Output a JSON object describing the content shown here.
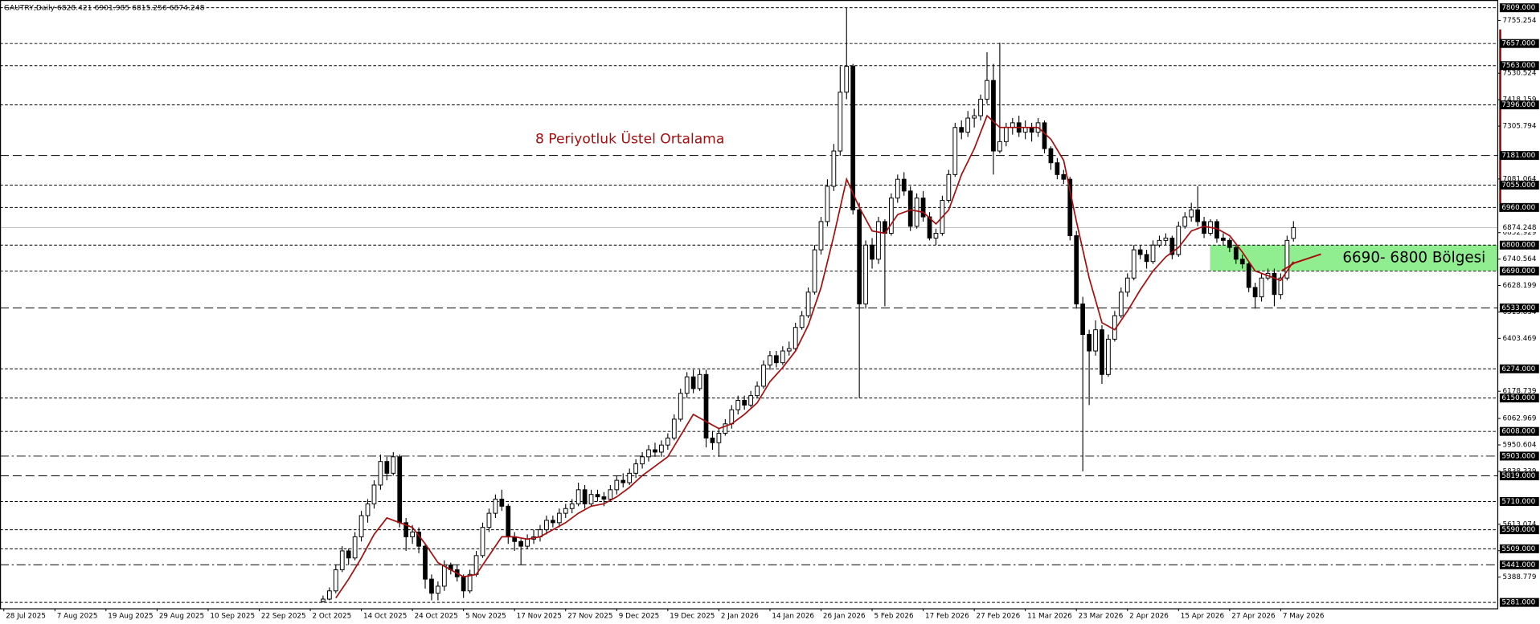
{
  "chart_data": {
    "type": "candlestick",
    "title": "GAUTRY,Daily  6828.421 6901.985 6815.256 6874.248",
    "xlim": [
      -0.6,
      234
    ],
    "ylim": [
      5256,
      7842
    ],
    "xticks": [
      {
        "value": 0,
        "label": "28 Jul 2025"
      },
      {
        "value": 8,
        "label": "7 Aug 2025"
      },
      {
        "value": 16,
        "label": "19 Aug 2025"
      },
      {
        "value": 24,
        "label": "29 Aug 2025"
      },
      {
        "value": 32,
        "label": "10 Sep 2025"
      },
      {
        "value": 40,
        "label": "22 Sep 2025"
      },
      {
        "value": 48,
        "label": "2 Oct 2025"
      },
      {
        "value": 56,
        "label": "14 Oct 2025"
      },
      {
        "value": 64,
        "label": "24 Oct 2025"
      },
      {
        "value": 72,
        "label": "5 Nov 2025"
      },
      {
        "value": 80,
        "label": "17 Nov 2025"
      },
      {
        "value": 88,
        "label": "27 Nov 2025"
      },
      {
        "value": 96,
        "label": "9 Dec 2025"
      },
      {
        "value": 104,
        "label": "19 Dec 2025"
      },
      {
        "value": 112,
        "label": "2 Jan 2026"
      },
      {
        "value": 120,
        "label": "14 Jan 2026"
      },
      {
        "value": 128,
        "label": "26 Jan 2026"
      },
      {
        "value": 136,
        "label": "5 Feb 2026"
      },
      {
        "value": 144,
        "label": "17 Feb 2026"
      },
      {
        "value": 152,
        "label": "27 Feb 2026"
      },
      {
        "value": 160,
        "label": "11 Mar 2026"
      },
      {
        "value": 168,
        "label": "23 Mar 2026"
      },
      {
        "value": 176,
        "label": "2 Apr 2026"
      },
      {
        "value": 184,
        "label": "15 Apr 2026"
      },
      {
        "value": 192,
        "label": "27 Apr 2026"
      },
      {
        "value": 200,
        "label": "7 May 2026"
      }
    ],
    "yticks": [
      7755.254,
      7530.524,
      7418.159,
      7305.794,
      7081.064,
      6852.929,
      6740.564,
      6628.199,
      6515.834,
      6403.469,
      6178.739,
      6062.969,
      5950.604,
      5838.339,
      5613.074,
      5500.809,
      5388.779
    ],
    "levels": [
      {
        "value": 7809,
        "label": "7809.000",
        "style": "dotted"
      },
      {
        "value": 7657,
        "label": "7657.000",
        "style": "dotted"
      },
      {
        "value": 7563,
        "label": "7563.000",
        "style": "dotted"
      },
      {
        "value": 7396,
        "label": "7396.000",
        "style": "dotted"
      },
      {
        "value": 7181,
        "label": "7181.000",
        "style": "dashed"
      },
      {
        "value": 7055,
        "label": "7055.000",
        "style": "dotted"
      },
      {
        "value": 6960,
        "label": "6960.000",
        "style": "dotted"
      },
      {
        "value": 6800,
        "label": "6800.000",
        "style": "dotted"
      },
      {
        "value": 6690,
        "label": "6690.000",
        "style": "dotted"
      },
      {
        "value": 6533,
        "label": "6533.000",
        "style": "dashed"
      },
      {
        "value": 6274,
        "label": "6274.000",
        "style": "dotted"
      },
      {
        "value": 6150,
        "label": "6150.000",
        "style": "dotted"
      },
      {
        "value": 6008,
        "label": "6008.000",
        "style": "dotted"
      },
      {
        "value": 5903,
        "label": "5903.000",
        "style": "dashdot"
      },
      {
        "value": 5819,
        "label": "5819.000",
        "style": "dashed"
      },
      {
        "value": 5710,
        "label": "5710.000",
        "style": "dotted"
      },
      {
        "value": 5590,
        "label": "5590.000",
        "style": "dotted"
      },
      {
        "value": 5509,
        "label": "5509.000",
        "style": "dotted"
      },
      {
        "value": 5441,
        "label": "5441.000",
        "style": "dashdot"
      },
      {
        "value": 5281,
        "label": "5281.000",
        "style": "dotted"
      }
    ],
    "current": {
      "value": 6874.248,
      "label": "6874.248"
    },
    "colors": {
      "up": "#ffffff",
      "down": "#000000",
      "level": "#000000",
      "current": "#c0c0c0"
    },
    "candles": [
      [
        50,
        5285,
        5310,
        5281,
        5295
      ],
      [
        51,
        5295,
        5345,
        5290,
        5330
      ],
      [
        52,
        5330,
        5440,
        5320,
        5420
      ],
      [
        53,
        5420,
        5520,
        5410,
        5500
      ],
      [
        54,
        5500,
        5510,
        5440,
        5470
      ],
      [
        55,
        5470,
        5580,
        5460,
        5560
      ],
      [
        56,
        5560,
        5670,
        5540,
        5650
      ],
      [
        57,
        5650,
        5720,
        5620,
        5700
      ],
      [
        58,
        5700,
        5800,
        5680,
        5780
      ],
      [
        59,
        5780,
        5910,
        5760,
        5880
      ],
      [
        60,
        5880,
        5900,
        5800,
        5830
      ],
      [
        61,
        5830,
        5920,
        5820,
        5900
      ],
      [
        62,
        5900,
        5910,
        5600,
        5620
      ],
      [
        63,
        5620,
        5640,
        5500,
        5560
      ],
      [
        64,
        5560,
        5610,
        5530,
        5580
      ],
      [
        65,
        5580,
        5600,
        5490,
        5520
      ],
      [
        66,
        5520,
        5530,
        5340,
        5380
      ],
      [
        67,
        5380,
        5400,
        5290,
        5320
      ],
      [
        68,
        5320,
        5370,
        5290,
        5350
      ],
      [
        69,
        5350,
        5460,
        5330,
        5440
      ],
      [
        70,
        5440,
        5450,
        5400,
        5420
      ],
      [
        71,
        5420,
        5440,
        5370,
        5390
      ],
      [
        72,
        5390,
        5400,
        5300,
        5330
      ],
      [
        73,
        5330,
        5420,
        5320,
        5400
      ],
      [
        74,
        5400,
        5500,
        5390,
        5480
      ],
      [
        75,
        5480,
        5620,
        5470,
        5600
      ],
      [
        76,
        5600,
        5680,
        5580,
        5660
      ],
      [
        77,
        5660,
        5740,
        5640,
        5720
      ],
      [
        78,
        5720,
        5760,
        5670,
        5690
      ],
      [
        79,
        5690,
        5700,
        5530,
        5560
      ],
      [
        80,
        5560,
        5580,
        5500,
        5540
      ],
      [
        81,
        5540,
        5550,
        5440,
        5520
      ],
      [
        82,
        5520,
        5570,
        5510,
        5550
      ],
      [
        83,
        5550,
        5590,
        5530,
        5560
      ],
      [
        84,
        5560,
        5610,
        5540,
        5590
      ],
      [
        85,
        5590,
        5650,
        5570,
        5630
      ],
      [
        86,
        5630,
        5650,
        5600,
        5620
      ],
      [
        87,
        5620,
        5680,
        5600,
        5660
      ],
      [
        88,
        5660,
        5700,
        5640,
        5680
      ],
      [
        89,
        5680,
        5720,
        5660,
        5700
      ],
      [
        90,
        5700,
        5790,
        5690,
        5760
      ],
      [
        91,
        5760,
        5780,
        5680,
        5700
      ],
      [
        92,
        5700,
        5760,
        5690,
        5740
      ],
      [
        93,
        5740,
        5760,
        5710,
        5730
      ],
      [
        94,
        5730,
        5750,
        5690,
        5720
      ],
      [
        95,
        5720,
        5780,
        5710,
        5760
      ],
      [
        96,
        5760,
        5820,
        5740,
        5800
      ],
      [
        97,
        5800,
        5830,
        5770,
        5790
      ],
      [
        98,
        5790,
        5850,
        5780,
        5830
      ],
      [
        99,
        5830,
        5890,
        5810,
        5870
      ],
      [
        100,
        5870,
        5920,
        5850,
        5900
      ],
      [
        101,
        5900,
        5950,
        5880,
        5930
      ],
      [
        102,
        5930,
        5960,
        5900,
        5920
      ],
      [
        103,
        5920,
        5970,
        5900,
        5950
      ],
      [
        104,
        5950,
        6000,
        5930,
        5980
      ],
      [
        105,
        5980,
        6080,
        5970,
        6060
      ],
      [
        106,
        6060,
        6190,
        6050,
        6170
      ],
      [
        107,
        6170,
        6260,
        6150,
        6240
      ],
      [
        108,
        6240,
        6270,
        6170,
        6190
      ],
      [
        109,
        6190,
        6270,
        6180,
        6250
      ],
      [
        110,
        6250,
        6270,
        5940,
        5980
      ],
      [
        111,
        5980,
        6010,
        5930,
        5960
      ],
      [
        112,
        5960,
        6020,
        5900,
        6000
      ],
      [
        113,
        6000,
        6060,
        5990,
        6040
      ],
      [
        114,
        6040,
        6120,
        6020,
        6100
      ],
      [
        115,
        6100,
        6160,
        6080,
        6140
      ],
      [
        116,
        6140,
        6160,
        6100,
        6120
      ],
      [
        117,
        6120,
        6180,
        6110,
        6160
      ],
      [
        118,
        6160,
        6220,
        6150,
        6200
      ],
      [
        119,
        6200,
        6310,
        6190,
        6290
      ],
      [
        120,
        6290,
        6350,
        6270,
        6330
      ],
      [
        121,
        6330,
        6350,
        6280,
        6300
      ],
      [
        122,
        6300,
        6370,
        6290,
        6350
      ],
      [
        123,
        6350,
        6390,
        6330,
        6360
      ],
      [
        124,
        6360,
        6470,
        6350,
        6450
      ],
      [
        125,
        6450,
        6520,
        6440,
        6500
      ],
      [
        126,
        6500,
        6620,
        6490,
        6600
      ],
      [
        127,
        6600,
        6800,
        6590,
        6780
      ],
      [
        128,
        6780,
        6920,
        6760,
        6900
      ],
      [
        129,
        6900,
        7080,
        6880,
        7050
      ],
      [
        130,
        7050,
        7230,
        7030,
        7200
      ],
      [
        131,
        7200,
        7560,
        7180,
        7450
      ],
      [
        132,
        7450,
        7809,
        7420,
        7560
      ],
      [
        133,
        7560,
        7570,
        6930,
        6950
      ],
      [
        134,
        6950,
        6980,
        6150,
        6550
      ],
      [
        135,
        6550,
        6820,
        6530,
        6800
      ],
      [
        136,
        6800,
        6830,
        6700,
        6740
      ],
      [
        137,
        6740,
        6920,
        6720,
        6900
      ],
      [
        138,
        6900,
        6910,
        6540,
        6850
      ],
      [
        139,
        6850,
        7020,
        6840,
        7000
      ],
      [
        140,
        7000,
        7100,
        6980,
        7080
      ],
      [
        141,
        7080,
        7110,
        7010,
        7030
      ],
      [
        142,
        7030,
        7050,
        6860,
        6880
      ],
      [
        143,
        6880,
        7020,
        6870,
        7000
      ],
      [
        144,
        7000,
        7030,
        6900,
        6920
      ],
      [
        145,
        6920,
        6940,
        6820,
        6830
      ],
      [
        146,
        6830,
        6870,
        6800,
        6850
      ],
      [
        147,
        6850,
        7010,
        6840,
        6990
      ],
      [
        148,
        6990,
        7120,
        6980,
        7100
      ],
      [
        149,
        7100,
        7320,
        7090,
        7300
      ],
      [
        150,
        7300,
        7330,
        7250,
        7280
      ],
      [
        151,
        7280,
        7370,
        7260,
        7340
      ],
      [
        152,
        7340,
        7380,
        7300,
        7350
      ],
      [
        153,
        7350,
        7440,
        7330,
        7420
      ],
      [
        154,
        7420,
        7620,
        7400,
        7500
      ],
      [
        155,
        7500,
        7570,
        7100,
        7200
      ],
      [
        156,
        7200,
        7660,
        7190,
        7240
      ],
      [
        157,
        7240,
        7320,
        7220,
        7300
      ],
      [
        158,
        7300,
        7340,
        7270,
        7320
      ],
      [
        159,
        7320,
        7350,
        7260,
        7280
      ],
      [
        160,
        7280,
        7330,
        7250,
        7300
      ],
      [
        161,
        7300,
        7320,
        7240,
        7280
      ],
      [
        162,
        7280,
        7340,
        7260,
        7320
      ],
      [
        163,
        7320,
        7330,
        7190,
        7210
      ],
      [
        164,
        7210,
        7220,
        7120,
        7150
      ],
      [
        165,
        7150,
        7170,
        7080,
        7100
      ],
      [
        166,
        7100,
        7120,
        7060,
        7080
      ],
      [
        167,
        7080,
        7090,
        6820,
        6840
      ],
      [
        168,
        6840,
        6860,
        6530,
        6550
      ],
      [
        169,
        6550,
        6580,
        5838,
        6420
      ],
      [
        170,
        6420,
        6440,
        6120,
        6350
      ],
      [
        171,
        6350,
        6480,
        6330,
        6440
      ],
      [
        172,
        6440,
        6460,
        6210,
        6250
      ],
      [
        173,
        6250,
        6420,
        6240,
        6400
      ],
      [
        174,
        6400,
        6520,
        6390,
        6500
      ],
      [
        175,
        6500,
        6620,
        6490,
        6600
      ],
      [
        176,
        6600,
        6680,
        6580,
        6660
      ],
      [
        177,
        6660,
        6800,
        6650,
        6780
      ],
      [
        178,
        6780,
        6800,
        6740,
        6760
      ],
      [
        179,
        6760,
        6780,
        6700,
        6730
      ],
      [
        180,
        6730,
        6820,
        6720,
        6800
      ],
      [
        181,
        6800,
        6840,
        6790,
        6820
      ],
      [
        182,
        6820,
        6850,
        6800,
        6830
      ],
      [
        183,
        6830,
        6840,
        6740,
        6760
      ],
      [
        184,
        6760,
        6900,
        6750,
        6880
      ],
      [
        185,
        6880,
        6940,
        6870,
        6920
      ],
      [
        186,
        6920,
        6980,
        6900,
        6950
      ],
      [
        187,
        6950,
        7050,
        6880,
        6900
      ],
      [
        188,
        6900,
        6920,
        6830,
        6850
      ],
      [
        189,
        6850,
        6910,
        6840,
        6900
      ],
      [
        190,
        6900,
        6910,
        6810,
        6830
      ],
      [
        191,
        6830,
        6850,
        6800,
        6820
      ],
      [
        192,
        6820,
        6830,
        6770,
        6790
      ],
      [
        193,
        6790,
        6800,
        6720,
        6740
      ],
      [
        194,
        6740,
        6760,
        6700,
        6720
      ],
      [
        195,
        6720,
        6730,
        6600,
        6620
      ],
      [
        196,
        6620,
        6640,
        6530,
        6580
      ],
      [
        197,
        6580,
        6680,
        6560,
        6660
      ],
      [
        198,
        6660,
        6700,
        6650,
        6680
      ],
      [
        199,
        6680,
        6700,
        6540,
        6590
      ],
      [
        200,
        6590,
        6680,
        6570,
        6660
      ],
      [
        201,
        6660,
        6840,
        6650,
        6820
      ],
      [
        202,
        6828.421,
        6901.985,
        6815.256,
        6874.248
      ]
    ],
    "ema": {
      "name": "8 Periyotluk Üstel Ortalama",
      "color": "#a50f0f",
      "x": [
        52,
        54,
        56,
        58,
        60,
        62,
        64,
        66,
        68,
        70,
        72,
        74,
        76,
        78,
        80,
        82,
        84,
        86,
        88,
        90,
        92,
        94,
        96,
        98,
        100,
        102,
        104,
        106,
        108,
        110,
        112,
        114,
        116,
        118,
        120,
        122,
        124,
        126,
        128,
        130,
        132,
        134,
        136,
        138,
        140,
        142,
        144,
        146,
        148,
        150,
        152,
        154,
        156,
        158,
        160,
        162,
        164,
        166,
        168,
        170,
        172,
        174,
        176,
        178,
        180,
        182,
        184,
        186,
        188,
        190,
        192,
        194,
        196,
        198,
        200,
        202
      ],
      "values": [
        5300,
        5380,
        5470,
        5570,
        5640,
        5620,
        5600,
        5530,
        5450,
        5420,
        5390,
        5400,
        5480,
        5560,
        5560,
        5550,
        5560,
        5590,
        5620,
        5660,
        5690,
        5700,
        5730,
        5770,
        5820,
        5860,
        5900,
        5990,
        6080,
        6050,
        6020,
        6040,
        6080,
        6130,
        6220,
        6280,
        6350,
        6460,
        6620,
        6840,
        7080,
        6960,
        6860,
        6850,
        6930,
        6950,
        6940,
        6890,
        6950,
        7100,
        7210,
        7350,
        7300,
        7300,
        7300,
        7300,
        7250,
        7160,
        6900,
        6660,
        6470,
        6440,
        6520,
        6610,
        6690,
        6750,
        6790,
        6860,
        6880,
        6870,
        6840,
        6770,
        6690,
        6670,
        6650,
        6730
      ]
    },
    "zone": {
      "label": "6690- 6800 Bölgesi",
      "range": [
        6690,
        6800
      ],
      "color": "#90ee90"
    }
  }
}
